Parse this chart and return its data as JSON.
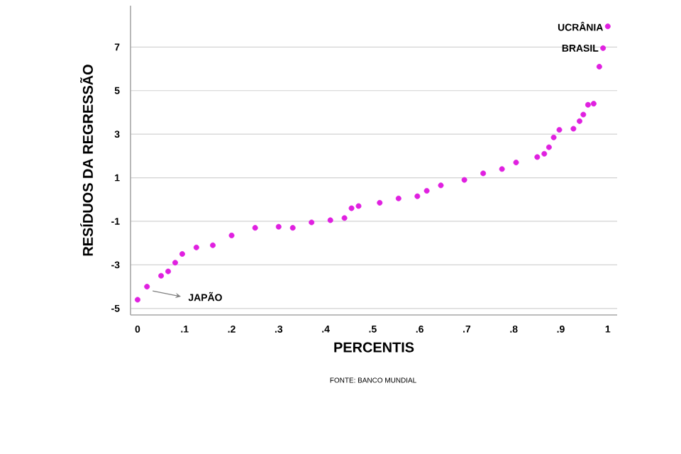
{
  "chart_data": {
    "type": "scatter",
    "xlabel": "PERCENTIS",
    "ylabel": "RESÍDUOS DA REGRESSÃO",
    "x": [
      0.0,
      0.02,
      0.05,
      0.065,
      0.08,
      0.095,
      0.125,
      0.16,
      0.2,
      0.25,
      0.3,
      0.33,
      0.37,
      0.41,
      0.44,
      0.455,
      0.47,
      0.515,
      0.555,
      0.595,
      0.615,
      0.645,
      0.695,
      0.735,
      0.775,
      0.805,
      0.85,
      0.865,
      0.875,
      0.885,
      0.897,
      0.927,
      0.94,
      0.948,
      0.958,
      0.97,
      0.982,
      0.99,
      1.0
    ],
    "series": [
      {
        "color": "#e020e0",
        "values": [
          -4.6,
          -4.0,
          -3.5,
          -3.3,
          -2.9,
          -2.5,
          -2.2,
          -2.1,
          -1.65,
          -1.3,
          -1.25,
          -1.3,
          -1.05,
          -0.95,
          -0.85,
          -0.4,
          -0.3,
          -0.15,
          0.05,
          0.15,
          0.4,
          0.65,
          0.9,
          1.2,
          1.4,
          1.7,
          1.95,
          2.1,
          2.4,
          2.85,
          3.2,
          3.25,
          3.6,
          3.9,
          4.35,
          4.4,
          6.1,
          6.95,
          7.95
        ]
      }
    ],
    "xlim": [
      -0.015,
      1.02
    ],
    "ylim": [
      -5.3,
      8.9
    ],
    "xticks": [
      0,
      {
        "value": 0.1,
        "label": ".1"
      },
      {
        "value": 0.2,
        "label": ".2"
      },
      {
        "value": 0.3,
        "label": ".3"
      },
      {
        "value": 0.4,
        "label": ".4"
      },
      {
        "value": 0.5,
        "label": ".5"
      },
      {
        "value": 0.6,
        "label": ".6"
      },
      {
        "value": 0.7,
        "label": ".7"
      },
      {
        "value": 0.8,
        "label": ".8"
      },
      {
        "value": 0.9,
        "label": ".9"
      },
      1
    ],
    "yticks": [
      -5,
      -3,
      -1,
      1,
      3,
      5,
      7
    ],
    "grid": "y",
    "annotations": [
      {
        "text": "UCRÂNIA",
        "x": 1.0,
        "y": 7.95
      },
      {
        "text": "BRASIL",
        "x": 0.99,
        "y": 6.95
      },
      {
        "text": "JAPÃO",
        "x": 0.02,
        "y": -4.0
      },
      "FONTE: BANCO MUNDIAL"
    ]
  }
}
